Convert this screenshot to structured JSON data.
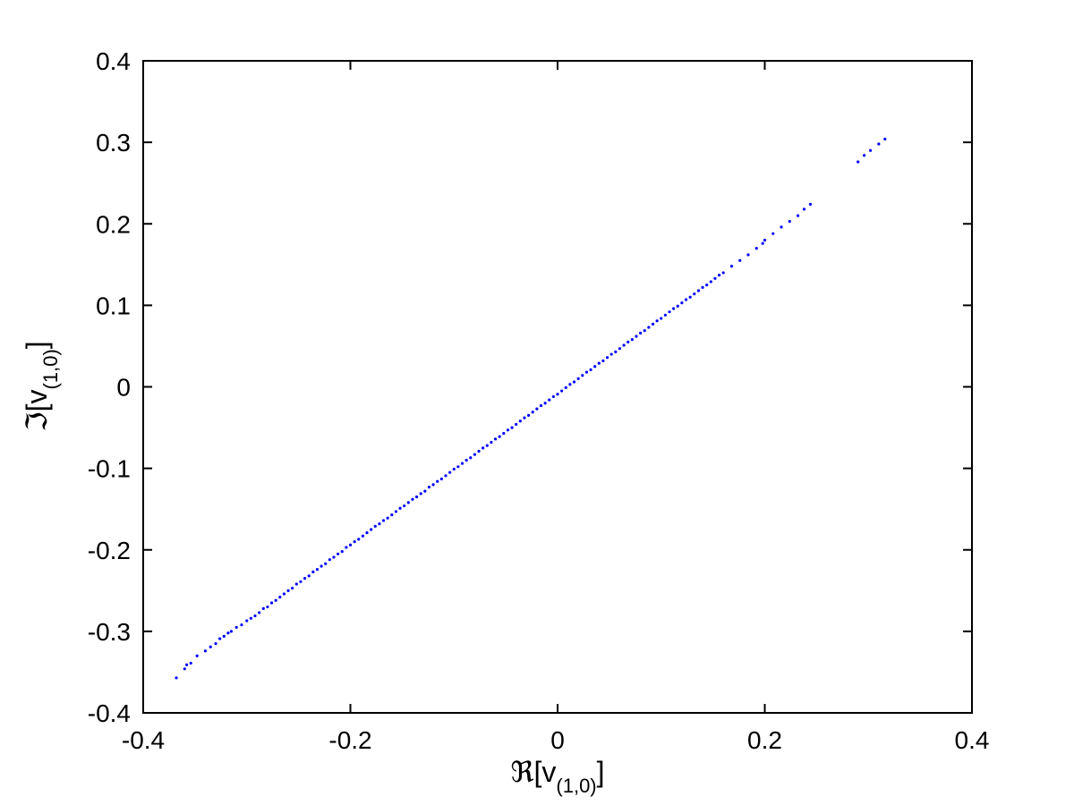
{
  "chart_data": {
    "type": "scatter",
    "title": "",
    "xlabel": {
      "prefix": "ℜ[v",
      "subscript": "(1,0)",
      "suffix": "]"
    },
    "ylabel": {
      "prefix": "ℑ[v",
      "subscript": "(1,0)",
      "suffix": "]"
    },
    "xlim": [
      -0.4,
      0.4
    ],
    "ylim": [
      -0.4,
      0.4
    ],
    "xticks": [
      -0.4,
      -0.2,
      0,
      0.2,
      0.4
    ],
    "xtick_labels": [
      "-0.4",
      "-0.2",
      "0",
      "0.2",
      "0.4"
    ],
    "yticks": [
      -0.4,
      -0.3,
      -0.2,
      -0.1,
      0,
      0.1,
      0.2,
      0.3,
      0.4
    ],
    "ytick_labels": [
      "-0.4",
      "-0.3",
      "-0.2",
      "-0.1",
      "0",
      "0.1",
      "0.2",
      "0.3",
      "0.4"
    ],
    "grid": false,
    "legend": "none",
    "marker_color": "#0000ff",
    "series": [
      {
        "x": [
          -0.368,
          -0.36,
          -0.358,
          -0.354,
          -0.348,
          -0.34,
          -0.335,
          -0.33,
          -0.326,
          -0.322,
          -0.318,
          -0.315,
          -0.31,
          -0.305,
          -0.3,
          -0.296,
          -0.292,
          -0.288,
          -0.284,
          -0.28,
          -0.276,
          -0.272,
          -0.268,
          -0.264,
          -0.26,
          -0.256,
          -0.252,
          -0.248,
          -0.244,
          -0.24,
          -0.236,
          -0.232,
          -0.228,
          -0.224,
          -0.22,
          -0.216,
          -0.212,
          -0.208,
          -0.204,
          -0.2,
          -0.196,
          -0.192,
          -0.188,
          -0.184,
          -0.18,
          -0.176,
          -0.172,
          -0.168,
          -0.164,
          -0.16,
          -0.156,
          -0.152,
          -0.148,
          -0.144,
          -0.14,
          -0.136,
          -0.132,
          -0.128,
          -0.124,
          -0.12,
          -0.116,
          -0.112,
          -0.108,
          -0.104,
          -0.1,
          -0.096,
          -0.092,
          -0.088,
          -0.084,
          -0.08,
          -0.076,
          -0.072,
          -0.068,
          -0.064,
          -0.06,
          -0.056,
          -0.052,
          -0.048,
          -0.044,
          -0.04,
          -0.036,
          -0.032,
          -0.028,
          -0.024,
          -0.02,
          -0.016,
          -0.012,
          -0.008,
          -0.004,
          0.0,
          0.004,
          0.008,
          0.012,
          0.016,
          0.02,
          0.024,
          0.028,
          0.032,
          0.036,
          0.04,
          0.044,
          0.048,
          0.052,
          0.056,
          0.06,
          0.064,
          0.068,
          0.072,
          0.076,
          0.08,
          0.084,
          0.088,
          0.092,
          0.096,
          0.1,
          0.104,
          0.108,
          0.112,
          0.116,
          0.12,
          0.124,
          0.128,
          0.132,
          0.136,
          0.14,
          0.144,
          0.148,
          0.152,
          0.156,
          0.16,
          0.168,
          0.176,
          0.184,
          0.192,
          0.198,
          0.2,
          0.208,
          0.216,
          0.224,
          0.232,
          0.238,
          0.244,
          0.29,
          0.296,
          0.302,
          0.31,
          0.316
        ],
        "y": [
          -0.357,
          -0.346,
          -0.341,
          -0.339,
          -0.33,
          -0.324,
          -0.319,
          -0.315,
          -0.309,
          -0.306,
          -0.302,
          -0.3,
          -0.295,
          -0.292,
          -0.287,
          -0.284,
          -0.281,
          -0.277,
          -0.272,
          -0.27,
          -0.265,
          -0.262,
          -0.258,
          -0.254,
          -0.25,
          -0.247,
          -0.242,
          -0.239,
          -0.235,
          -0.232,
          -0.227,
          -0.224,
          -0.22,
          -0.217,
          -0.212,
          -0.209,
          -0.205,
          -0.202,
          -0.197,
          -0.194,
          -0.19,
          -0.187,
          -0.183,
          -0.179,
          -0.175,
          -0.171,
          -0.168,
          -0.164,
          -0.161,
          -0.157,
          -0.153,
          -0.149,
          -0.146,
          -0.142,
          -0.138,
          -0.135,
          -0.131,
          -0.128,
          -0.123,
          -0.12,
          -0.116,
          -0.113,
          -0.109,
          -0.105,
          -0.101,
          -0.098,
          -0.094,
          -0.09,
          -0.087,
          -0.083,
          -0.079,
          -0.075,
          -0.072,
          -0.068,
          -0.064,
          -0.061,
          -0.057,
          -0.053,
          -0.05,
          -0.046,
          -0.042,
          -0.038,
          -0.035,
          -0.031,
          -0.027,
          -0.023,
          -0.02,
          -0.016,
          -0.012,
          -0.009,
          -0.005,
          -0.001,
          0.003,
          0.006,
          0.01,
          0.014,
          0.018,
          0.021,
          0.025,
          0.029,
          0.032,
          0.036,
          0.04,
          0.043,
          0.047,
          0.051,
          0.055,
          0.058,
          0.062,
          0.066,
          0.069,
          0.073,
          0.077,
          0.081,
          0.084,
          0.088,
          0.092,
          0.096,
          0.099,
          0.103,
          0.107,
          0.11,
          0.114,
          0.118,
          0.122,
          0.125,
          0.129,
          0.133,
          0.137,
          0.14,
          0.148,
          0.155,
          0.162,
          0.17,
          0.176,
          0.18,
          0.188,
          0.196,
          0.203,
          0.21,
          0.218,
          0.224,
          0.276,
          0.284,
          0.29,
          0.298,
          0.304
        ]
      }
    ]
  }
}
